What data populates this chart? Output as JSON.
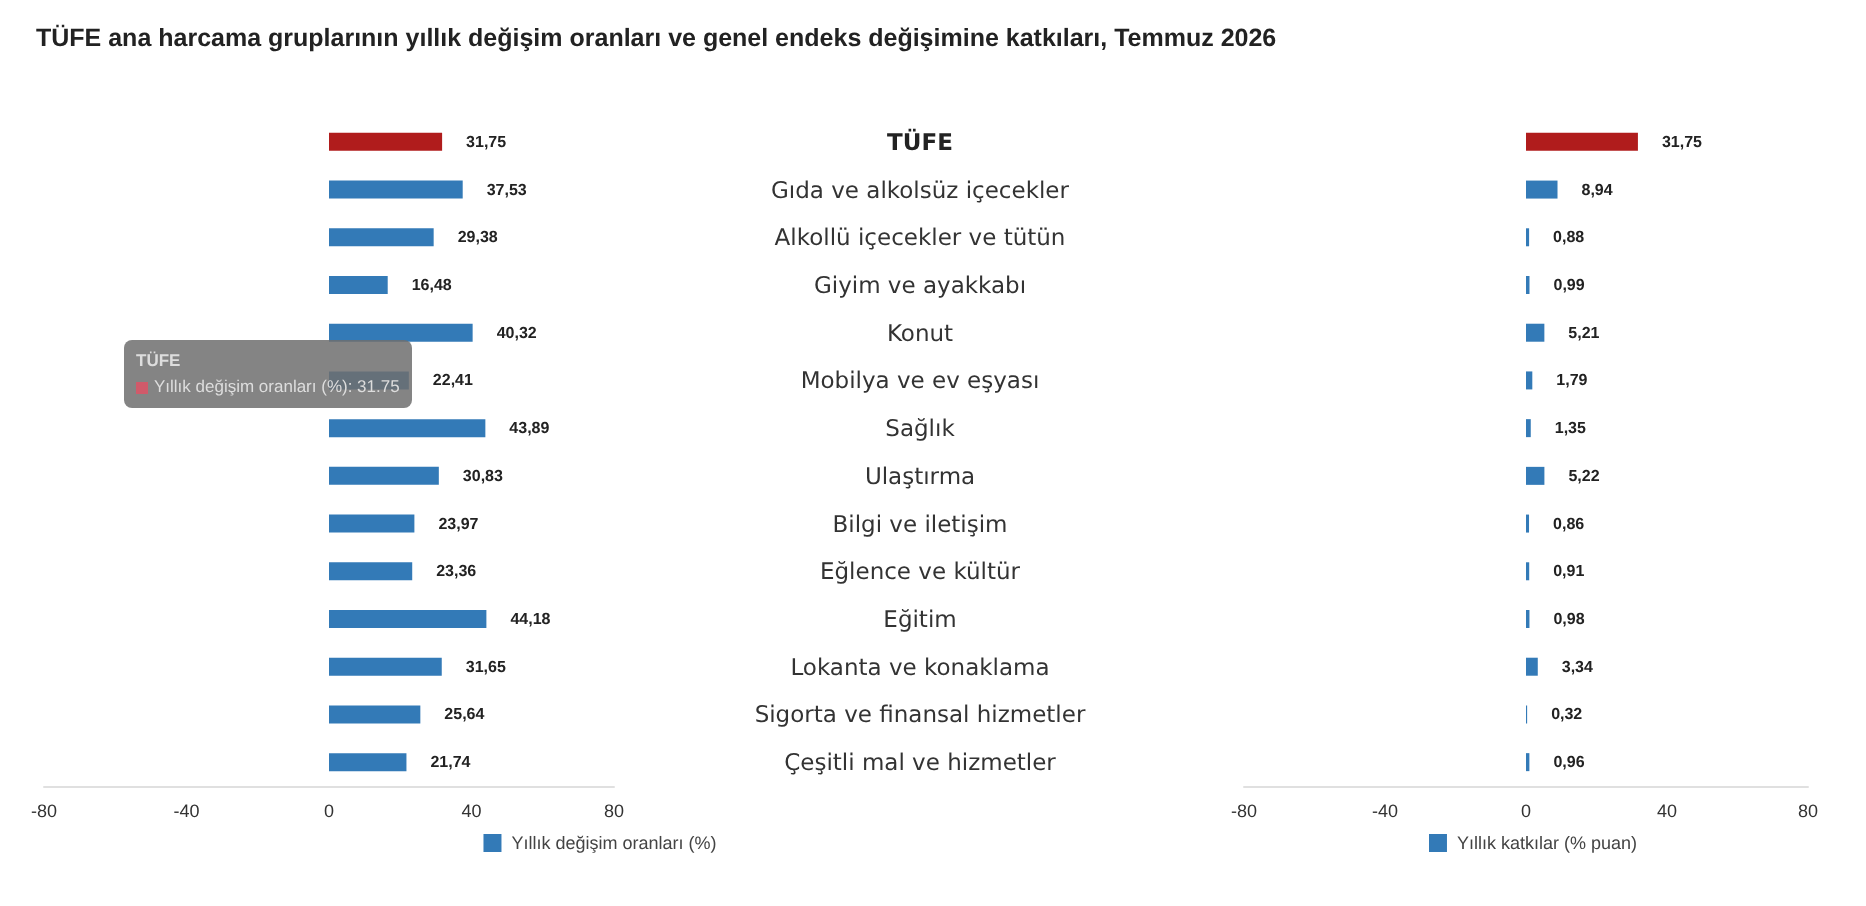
{
  "chart_data": [
    {
      "type": "bar",
      "orientation": "horizontal",
      "title": "TÜFE ana harcama gruplarının yıllık değişim oranları ve genel endeks değişimine katkıları, Temmuz 2026",
      "categories": [
        "TÜFE",
        "Gıda ve alkolsüz içecekler",
        "Alkollü içecekler ve tütün",
        "Giyim ve ayakkabı",
        "Konut",
        "Mobilya ve ev eşyası",
        "Sağlık",
        "Ulaştırma",
        "Bilgi ve iletişim",
        "Eğlence ve kültür",
        "Eğitim",
        "Lokanta ve konaklama",
        "Sigorta ve finansal hizmetler",
        "Çeşitli mal ve hizmetler"
      ],
      "series": [
        {
          "name": "Yıllık değişim oranları (%)",
          "color": "#337ab7",
          "colors": [
            "#b01c1c",
            "#337ab7",
            "#337ab7",
            "#337ab7",
            "#337ab7",
            "#337ab7",
            "#337ab7",
            "#337ab7",
            "#337ab7",
            "#337ab7",
            "#337ab7",
            "#337ab7",
            "#337ab7",
            "#337ab7"
          ],
          "values": [
            31.75,
            37.53,
            29.38,
            16.48,
            40.32,
            22.41,
            43.89,
            30.83,
            23.97,
            23.36,
            44.18,
            31.65,
            25.64,
            21.74
          ],
          "value_labels": [
            "31,75",
            "37,53",
            "29,38",
            "16,48",
            "40,32",
            "22,41",
            "43,89",
            "30,83",
            "23,97",
            "23,36",
            "44,18",
            "31,65",
            "25,64",
            "21,74"
          ]
        }
      ],
      "xlim": [
        -80,
        80
      ],
      "xticks": [
        -80,
        -40,
        0,
        40,
        80
      ],
      "legend": "bottom",
      "grid": false,
      "annotations": [
        "TÜFE",
        "Yıllık değişim oranları (%): 31.75"
      ]
    },
    {
      "type": "bar",
      "orientation": "horizontal",
      "categories": [
        null,
        null,
        null,
        null,
        null,
        null,
        null,
        null,
        null,
        null,
        null,
        null,
        null,
        null
      ],
      "series": [
        {
          "name": "Yıllık katkılar (% puan)",
          "color": "#337ab7",
          "colors": [
            "#b01c1c",
            "#337ab7",
            "#337ab7",
            "#337ab7",
            "#337ab7",
            "#337ab7",
            "#337ab7",
            "#337ab7",
            "#337ab7",
            "#337ab7",
            "#337ab7",
            "#337ab7",
            "#337ab7",
            "#337ab7"
          ],
          "values": [
            31.75,
            8.94,
            0.88,
            0.99,
            5.21,
            1.79,
            1.35,
            5.22,
            0.86,
            0.91,
            0.98,
            3.34,
            0.32,
            0.96
          ],
          "value_labels": [
            "31,75",
            "8,94",
            "0,88",
            "0,99",
            "5,21",
            "1,79",
            "1,35",
            "5,22",
            "0,86",
            "0,91",
            "0,98",
            "3,34",
            "0,32",
            "0,96"
          ]
        }
      ],
      "xlim": [
        -80,
        80
      ],
      "xticks": [
        -80,
        -40,
        0,
        40,
        80
      ],
      "legend": "bottom",
      "grid": false
    }
  ]
}
